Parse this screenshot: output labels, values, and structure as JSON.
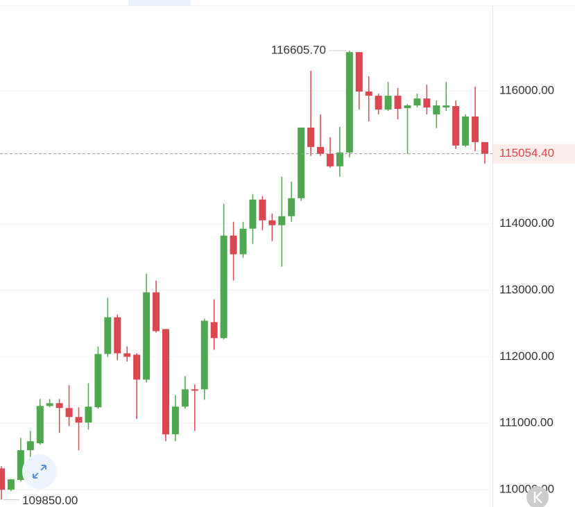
{
  "chart_data": {
    "type": "candlestick",
    "up_color": "#4fa84f",
    "down_color": "#d94750",
    "grid": true,
    "ylim": [
      109740,
      117367
    ],
    "yticks": [
      {
        "value": 110000,
        "label": "110000.00"
      },
      {
        "value": 111000,
        "label": "111000.00"
      },
      {
        "value": 112000,
        "label": "112000.00"
      },
      {
        "value": 113000,
        "label": "113000.00"
      },
      {
        "value": 114000,
        "label": "114000.00"
      },
      {
        "value": 116000,
        "label": "116000.00"
      }
    ],
    "open": [
      110320,
      110000,
      110146,
      110594,
      110698,
      111260,
      111302,
      111229,
      111094,
      111010,
      111240,
      112042,
      112594,
      112052,
      112031,
      111656,
      112969,
      112417,
      110833,
      111250,
      111510,
      111510,
      112521,
      112281,
      113823,
      113542,
      113927,
      114365,
      114052,
      113979,
      114115,
      114385,
      115448,
      115156,
      115052,
      114865,
      115073,
      116583,
      115990,
      115927,
      115719,
      115927,
      115740,
      115781,
      115885,
      115646,
      115750,
      115771,
      115177,
      115615,
      115229
    ],
    "high": [
      110354,
      110160,
      110781,
      110885,
      111365,
      111365,
      111365,
      111573,
      111240,
      111604,
      112156,
      112885,
      112635,
      112156,
      112052,
      113250,
      113146,
      112417,
      111427,
      111708,
      111583,
      112573,
      112865,
      114302,
      114031,
      114031,
      114448,
      114417,
      114156,
      114708,
      114635,
      115448,
      116302,
      115646,
      115302,
      115458,
      116605.7,
      116583,
      116219,
      115958,
      116135,
      116042,
      115802,
      115958,
      116094,
      115854,
      116135,
      115854,
      115646,
      116063,
      115229
    ],
    "low": [
      109850,
      109980,
      110125,
      110406,
      110677,
      111240,
      110854,
      110958,
      110594,
      110906,
      111219,
      112000,
      111948,
      111927,
      111063,
      111615,
      112365,
      110729,
      110729,
      111219,
      110885,
      111354,
      112104,
      112260,
      113146,
      113490,
      113698,
      113906,
      113740,
      113354,
      114031,
      114344,
      115021,
      115021,
      114844,
      114708,
      115000,
      115719,
      115542,
      115646,
      115698,
      115573,
      115052,
      115750,
      115646,
      115438,
      115698,
      115125,
      115156,
      115094,
      114906
    ],
    "close": [
      110000,
      110156,
      110594,
      110729,
      111260,
      111302,
      111229,
      111094,
      111010,
      111250,
      112042,
      112594,
      112052,
      112000,
      111656,
      112969,
      112385,
      110833,
      111250,
      111510,
      111490,
      112542,
      112281,
      113823,
      113542,
      113927,
      114365,
      114052,
      113979,
      114115,
      114385,
      115448,
      115156,
      115052,
      114865,
      115073,
      116583,
      115990,
      115927,
      115719,
      115927,
      115729,
      115781,
      115885,
      115750,
      115781,
      115781,
      115177,
      115615,
      115229,
      115054.4
    ],
    "high_label": {
      "value": 116605.7,
      "label": "116605.70"
    },
    "low_label": {
      "value": 109850,
      "label": "109850.00"
    },
    "last_price": {
      "value": 115054.4,
      "label": "115054.40"
    }
  }
}
